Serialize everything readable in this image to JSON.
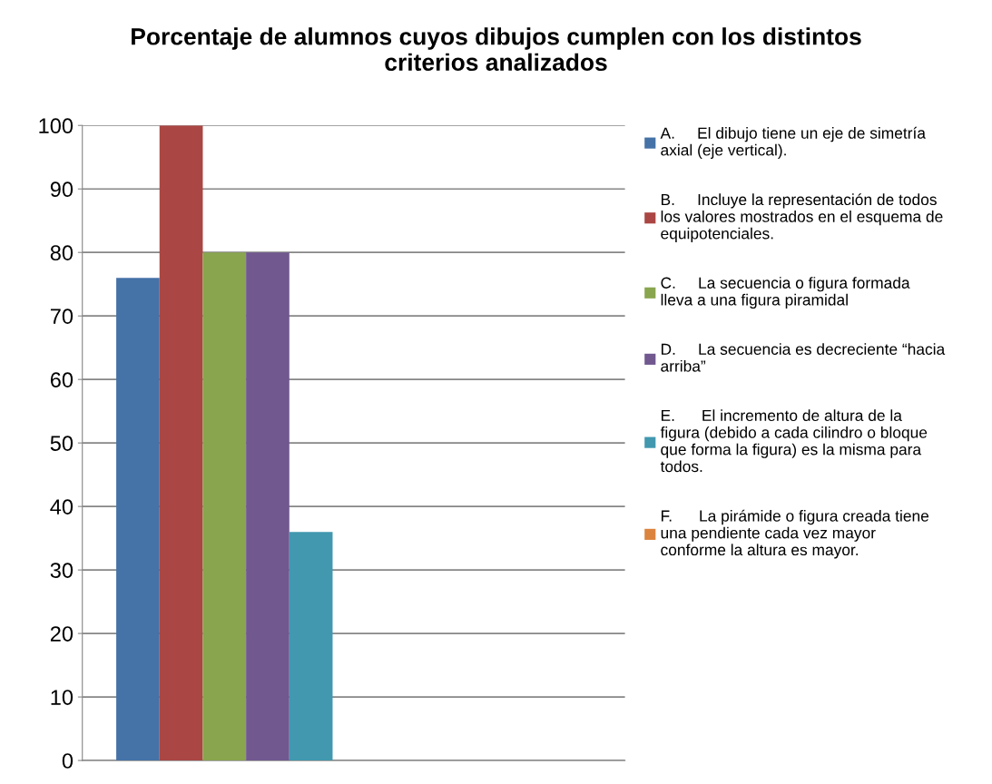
{
  "chart_data": {
    "type": "bar",
    "title": "Porcentaje de alumnos cuyos dibujos cumplen con los distintos\ncriterios analizados",
    "categories": [
      null
    ],
    "ylim": [
      0,
      100
    ],
    "yticks": [
      0,
      10,
      20,
      30,
      40,
      50,
      60,
      70,
      80,
      90,
      100
    ],
    "grid": "y",
    "legend": "right",
    "series": [
      {
        "name": "A.     El dibujo tiene un eje de simetría\naxial (eje vertical).",
        "color": "#4572a7",
        "values": [
          76
        ]
      },
      {
        "name": "B.     Incluye la representación de todos\nlos valores mostrados en el esquema de\nequipotenciales.",
        "color": "#aa4643",
        "values": [
          100
        ]
      },
      {
        "name": "C.     La secuencia o figura formada\nlleva a una figura piramidal",
        "color": "#89a54e",
        "values": [
          80
        ]
      },
      {
        "name": "D.     La secuencia es decreciente “hacia\narriba”",
        "color": "#71588f",
        "values": [
          80
        ]
      },
      {
        "name": "E.      El incremento de altura de la\nfigura (debido a cada cilindro o bloque\nque forma la figura) es la misma para\ntodos.",
        "color": "#4198af",
        "values": [
          36
        ]
      },
      {
        "name": "F.      La pirámide o figura creada tiene\nuna pendiente cada vez mayor\nconforme la altura es mayor.",
        "color": "#db843d",
        "values": [
          0
        ]
      }
    ]
  }
}
